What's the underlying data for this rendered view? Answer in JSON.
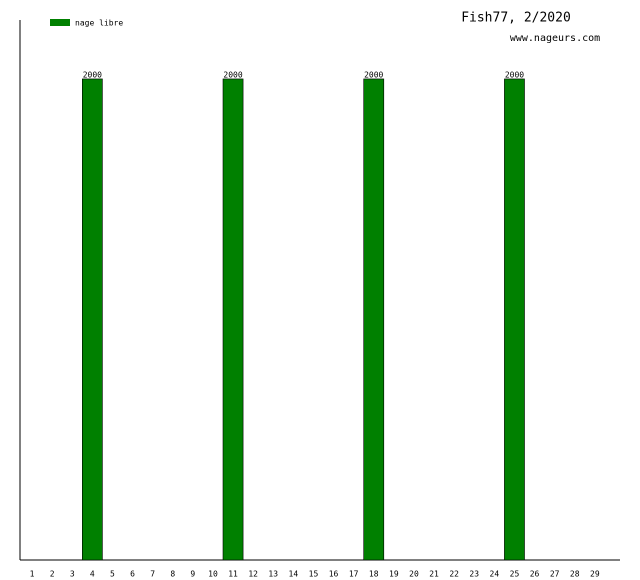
{
  "chart_data": {
    "type": "bar",
    "title": "Fish77, 2/2020",
    "subtitle": "www.nageurs.com",
    "categories": [
      "1",
      "2",
      "3",
      "4",
      "5",
      "6",
      "7",
      "8",
      "9",
      "10",
      "11",
      "12",
      "13",
      "14",
      "15",
      "16",
      "17",
      "18",
      "19",
      "20",
      "21",
      "22",
      "23",
      "24",
      "25",
      "26",
      "27",
      "28",
      "29"
    ],
    "series": [
      {
        "name": "nage libre",
        "color": "#008000",
        "values": [
          null,
          null,
          null,
          2000,
          null,
          null,
          null,
          null,
          null,
          null,
          2000,
          null,
          null,
          null,
          null,
          null,
          null,
          2000,
          null,
          null,
          null,
          null,
          null,
          null,
          2000,
          null,
          null,
          null,
          null
        ]
      }
    ],
    "ylim": [
      0,
      2245
    ]
  }
}
